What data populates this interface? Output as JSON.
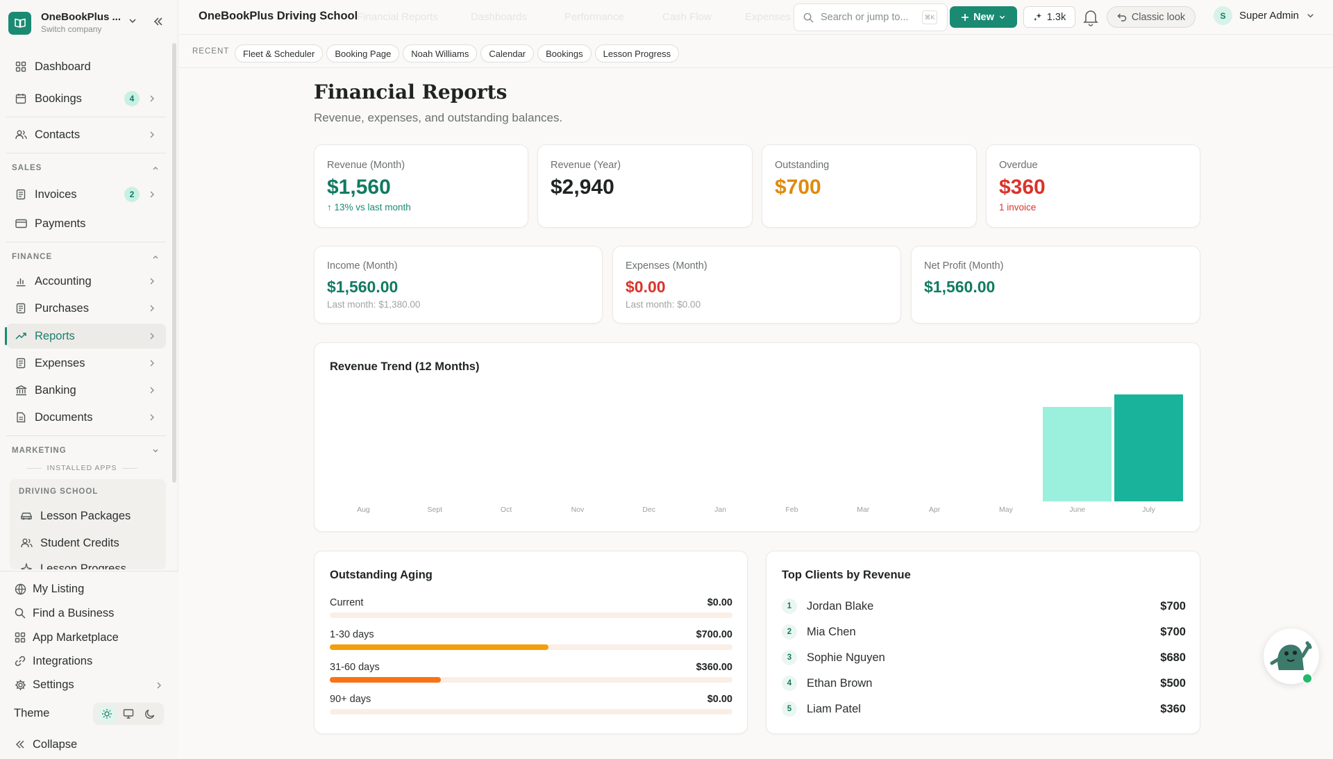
{
  "brand": {
    "name": "OneBookPlus ...",
    "sub": "Switch company"
  },
  "sidebar": {
    "dashboard": "Dashboard",
    "bookings": "Bookings",
    "bookings_badge": "4",
    "contacts": "Contacts",
    "sales_section": "SALES",
    "invoices": "Invoices",
    "invoices_badge": "2",
    "payments": "Payments",
    "finance_section": "FINANCE",
    "accounting": "Accounting",
    "purchases": "Purchases",
    "reports": "Reports",
    "expenses": "Expenses",
    "banking": "Banking",
    "documents": "Documents",
    "marketing_section": "MARKETING",
    "installed_apps": "INSTALLED APPS",
    "driving_school": "DRIVING SCHOOL",
    "lesson_packages": "Lesson Packages",
    "student_credits": "Student Credits",
    "lesson_progress": "Lesson Progress",
    "my_listing": "My Listing",
    "find_business": "Find a Business",
    "app_marketplace": "App Marketplace",
    "integrations": "Integrations",
    "settings": "Settings",
    "theme": "Theme",
    "collapse": "Collapse"
  },
  "topbar": {
    "title": "OneBookPlus Driving School",
    "ghost_tabs": [
      "Financial Reports",
      "Dashboards",
      "Performance",
      "Cash Flow",
      "Expenses"
    ],
    "search_placeholder": "Search or jump to...",
    "search_kbd": "⌘K",
    "new_label": "New",
    "spark_count": "1.3k",
    "classic_label": "Classic look",
    "user_initial": "S",
    "user_name": "Super Admin"
  },
  "recent": {
    "label": "RECENT",
    "chips": [
      "Fleet & Scheduler",
      "Booking Page",
      "Noah Williams",
      "Calendar",
      "Bookings",
      "Lesson Progress"
    ]
  },
  "page": {
    "title": "Financial Reports",
    "subtitle": "Revenue, expenses, and outstanding balances."
  },
  "kpis": [
    {
      "label": "Revenue (Month)",
      "value": "$1,560",
      "note": "↑ 13% vs last month",
      "color": "#117a62",
      "note_color": "#1a8a73"
    },
    {
      "label": "Revenue (Year)",
      "value": "$2,940",
      "note": "",
      "color": "#1f2421",
      "note_color": "#1f2421"
    },
    {
      "label": "Outstanding",
      "value": "$700",
      "note": "",
      "color": "#e08a0b",
      "note_color": "#e08a0b"
    },
    {
      "label": "Overdue",
      "value": "$360",
      "note": "1 invoice",
      "color": "#d9342b",
      "note_color": "#d9342b"
    }
  ],
  "summary": [
    {
      "label": "Income (Month)",
      "value": "$1,560.00",
      "note": "Last month: $1,380.00",
      "color": "#117a62"
    },
    {
      "label": "Expenses (Month)",
      "value": "$0.00",
      "note": "Last month: $0.00",
      "color": "#d9342b"
    },
    {
      "label": "Net Profit (Month)",
      "value": "$1,560.00",
      "note": "",
      "color": "#117a62"
    }
  ],
  "chart_data": {
    "type": "bar",
    "title": "Revenue Trend (12 Months)",
    "categories": [
      "Aug",
      "Sept",
      "Oct",
      "Nov",
      "Dec",
      "Jan",
      "Feb",
      "Mar",
      "Apr",
      "May",
      "June",
      "July"
    ],
    "values": [
      0,
      0,
      0,
      0,
      0,
      0,
      0,
      0,
      0,
      0,
      1380,
      1560
    ],
    "ylim": [
      0,
      1560
    ],
    "grid": false,
    "colors": {
      "default": "#9af0dd",
      "last": "#18b39a"
    }
  },
  "aging": {
    "title": "Outstanding Aging",
    "rows": [
      {
        "label": "Current",
        "amount": "$0.00",
        "fraction": 0,
        "color": "#f59e0b"
      },
      {
        "label": "1-30 days",
        "amount": "$700.00",
        "fraction": 0.5434,
        "color": "#f59e0b"
      },
      {
        "label": "31-60 days",
        "amount": "$360.00",
        "fraction": 0.2759,
        "color": "#f97316"
      },
      {
        "label": "90+ days",
        "amount": "$0.00",
        "fraction": 0,
        "color": "#f59e0b"
      }
    ]
  },
  "clients": {
    "title": "Top Clients by Revenue",
    "rows": [
      {
        "rank": "1",
        "name": "Jordan Blake",
        "amount": "$700"
      },
      {
        "rank": "2",
        "name": "Mia Chen",
        "amount": "$700"
      },
      {
        "rank": "3",
        "name": "Sophie Nguyen",
        "amount": "$680"
      },
      {
        "rank": "4",
        "name": "Ethan Brown",
        "amount": "$500"
      },
      {
        "rank": "5",
        "name": "Liam Patel",
        "amount": "$360"
      }
    ]
  },
  "colors": {
    "brand": "#1a8a73",
    "accent_text": "#117a62"
  }
}
